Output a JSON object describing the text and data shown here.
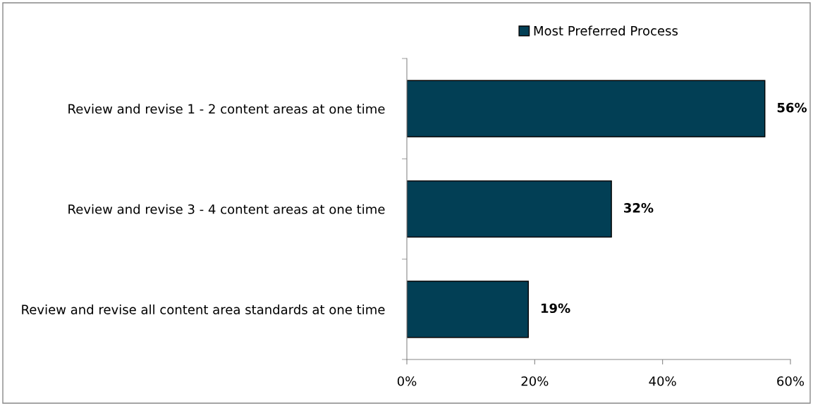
{
  "chart_data": {
    "type": "bar",
    "orientation": "horizontal",
    "categories": [
      "Review and revise 1 - 2 content areas at one time",
      "Review and revise 3 - 4 content areas at one time",
      "Review and revise all content area standards at one time"
    ],
    "series": [
      {
        "name": "Most Preferred Process",
        "color": "#023f55",
        "values": [
          56,
          32,
          19
        ]
      }
    ],
    "value_labels": [
      "56%",
      "32%",
      "19%"
    ],
    "xlim": [
      0,
      60
    ],
    "xticks": [
      {
        "value": 0,
        "label": "0%"
      },
      {
        "value": 20,
        "label": "20%"
      },
      {
        "value": 40,
        "label": "40%"
      },
      {
        "value": 60,
        "label": "60%"
      }
    ],
    "grid": false,
    "legend": "top"
  }
}
